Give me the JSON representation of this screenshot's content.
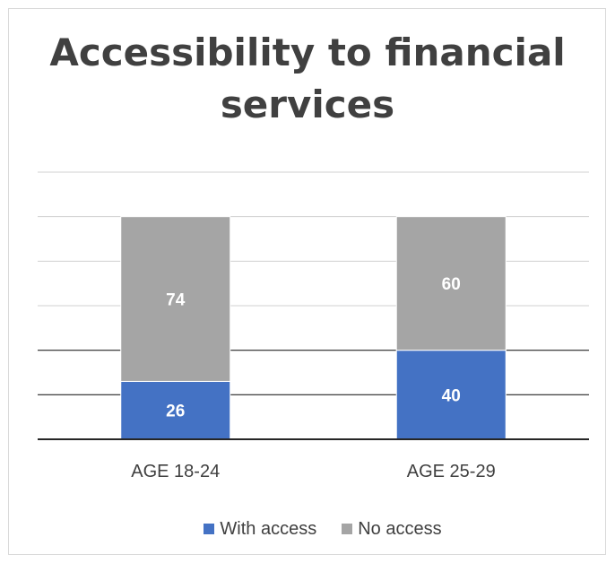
{
  "chart_data": {
    "type": "bar",
    "stacked": true,
    "title": "Accessibility to financial services",
    "title_lines": [
      "Accessibility to financial",
      "services"
    ],
    "categories": [
      "AGE 18-24",
      "AGE 25-29"
    ],
    "series": [
      {
        "name": "With access",
        "values": [
          26,
          40
        ],
        "color": "#4472c4"
      },
      {
        "name": "No access",
        "values": [
          74,
          60
        ],
        "color": "#a5a5a5"
      }
    ],
    "ylim": [
      0,
      120
    ],
    "grid": true,
    "legend_position": "bottom",
    "data_labels": true
  }
}
